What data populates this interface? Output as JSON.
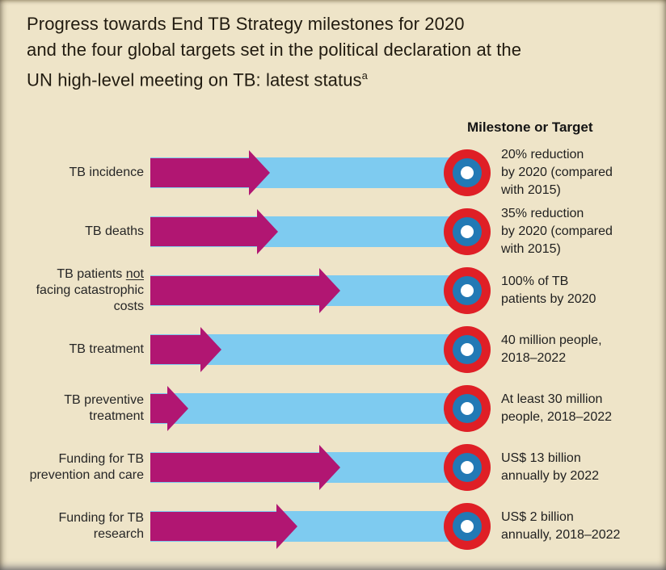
{
  "title": {
    "lines": [
      "Progress towards End TB Strategy milestones for 2020",
      "and the four global targets set in the political declaration at the",
      "UN high-level meeting on TB: latest status"
    ],
    "superscript": "a"
  },
  "column_header": "Milestone or Target",
  "rows": [
    {
      "label": "TB incidence",
      "label_lines": [
        "TB incidence"
      ],
      "milestone_lines": [
        "20% reduction",
        "by 2020 (compared",
        "with 2015)"
      ],
      "progress_pct": 37.8
    },
    {
      "label": "TB deaths",
      "label_lines": [
        "TB deaths"
      ],
      "milestone_lines": [
        "35% reduction",
        "by 2020 (compared",
        "with 2015)"
      ],
      "progress_pct": 40.3
    },
    {
      "label": "TB patients not facing catastrophic costs",
      "label_lines": [
        "TB patients not",
        "facing catastrophic",
        "costs"
      ],
      "underline_word": "not",
      "milestone_lines": [
        "100% of TB",
        "patients by 2020"
      ],
      "progress_pct": 59.9
    },
    {
      "label": "TB treatment",
      "label_lines": [
        "TB treatment"
      ],
      "milestone_lines": [
        "40 million people,",
        "2018–2022"
      ],
      "progress_pct": 22.4
    },
    {
      "label": "TB preventive treatment",
      "label_lines": [
        "TB preventive",
        "treatment"
      ],
      "milestone_lines": [
        "At least 30 million",
        "people, 2018–2022"
      ],
      "progress_pct": 12.0
    },
    {
      "label": "Funding for TB prevention and care",
      "label_lines": [
        "Funding for TB",
        "prevention and care"
      ],
      "milestone_lines": [
        "US$ 13 billion",
        "annually by 2022"
      ],
      "progress_pct": 59.9
    },
    {
      "label": "Funding for TB research",
      "label_lines": [
        "Funding for TB",
        "research"
      ],
      "milestone_lines": [
        "US$ 2 billion",
        "annually, 2018–2022"
      ],
      "progress_pct": 46.4
    }
  ],
  "colors": {
    "background": "#eee4c8",
    "arrow": "#b11672",
    "track": "#7ecbf0",
    "target_outer": "#df1f26",
    "target_ring": "#2279b5",
    "target_center": "#ffffff",
    "text": "#211b10"
  },
  "chart_data": {
    "type": "bar",
    "orientation": "horizontal",
    "title": "Progress towards End TB Strategy milestones for 2020 and the four global targets set in the political declaration at the UN high-level meeting on TB: latest status(a)",
    "legend": "Milestone or Target",
    "categories": [
      "TB incidence",
      "TB deaths",
      "TB patients not facing catastrophic costs",
      "TB treatment",
      "TB preventive treatment",
      "Funding for TB prevention and care",
      "Funding for TB research"
    ],
    "values_pct_of_target": [
      37.8,
      40.3,
      59.9,
      22.4,
      12.0,
      59.9,
      46.4
    ],
    "milestones_or_targets": [
      "20% reduction by 2020 (compared with 2015)",
      "35% reduction by 2020 (compared with 2015)",
      "100% of TB patients by 2020",
      "40 million people, 2018–2022",
      "At least 30 million people, 2018–2022",
      "US$ 13 billion annually by 2022",
      "US$ 2 billion annually, 2018–2022"
    ],
    "xlim_pct": [
      0,
      100
    ],
    "grid": false,
    "notes": "Arrow length shows latest status toward the bullseye target at 100%; values estimated from arrow tip position."
  }
}
